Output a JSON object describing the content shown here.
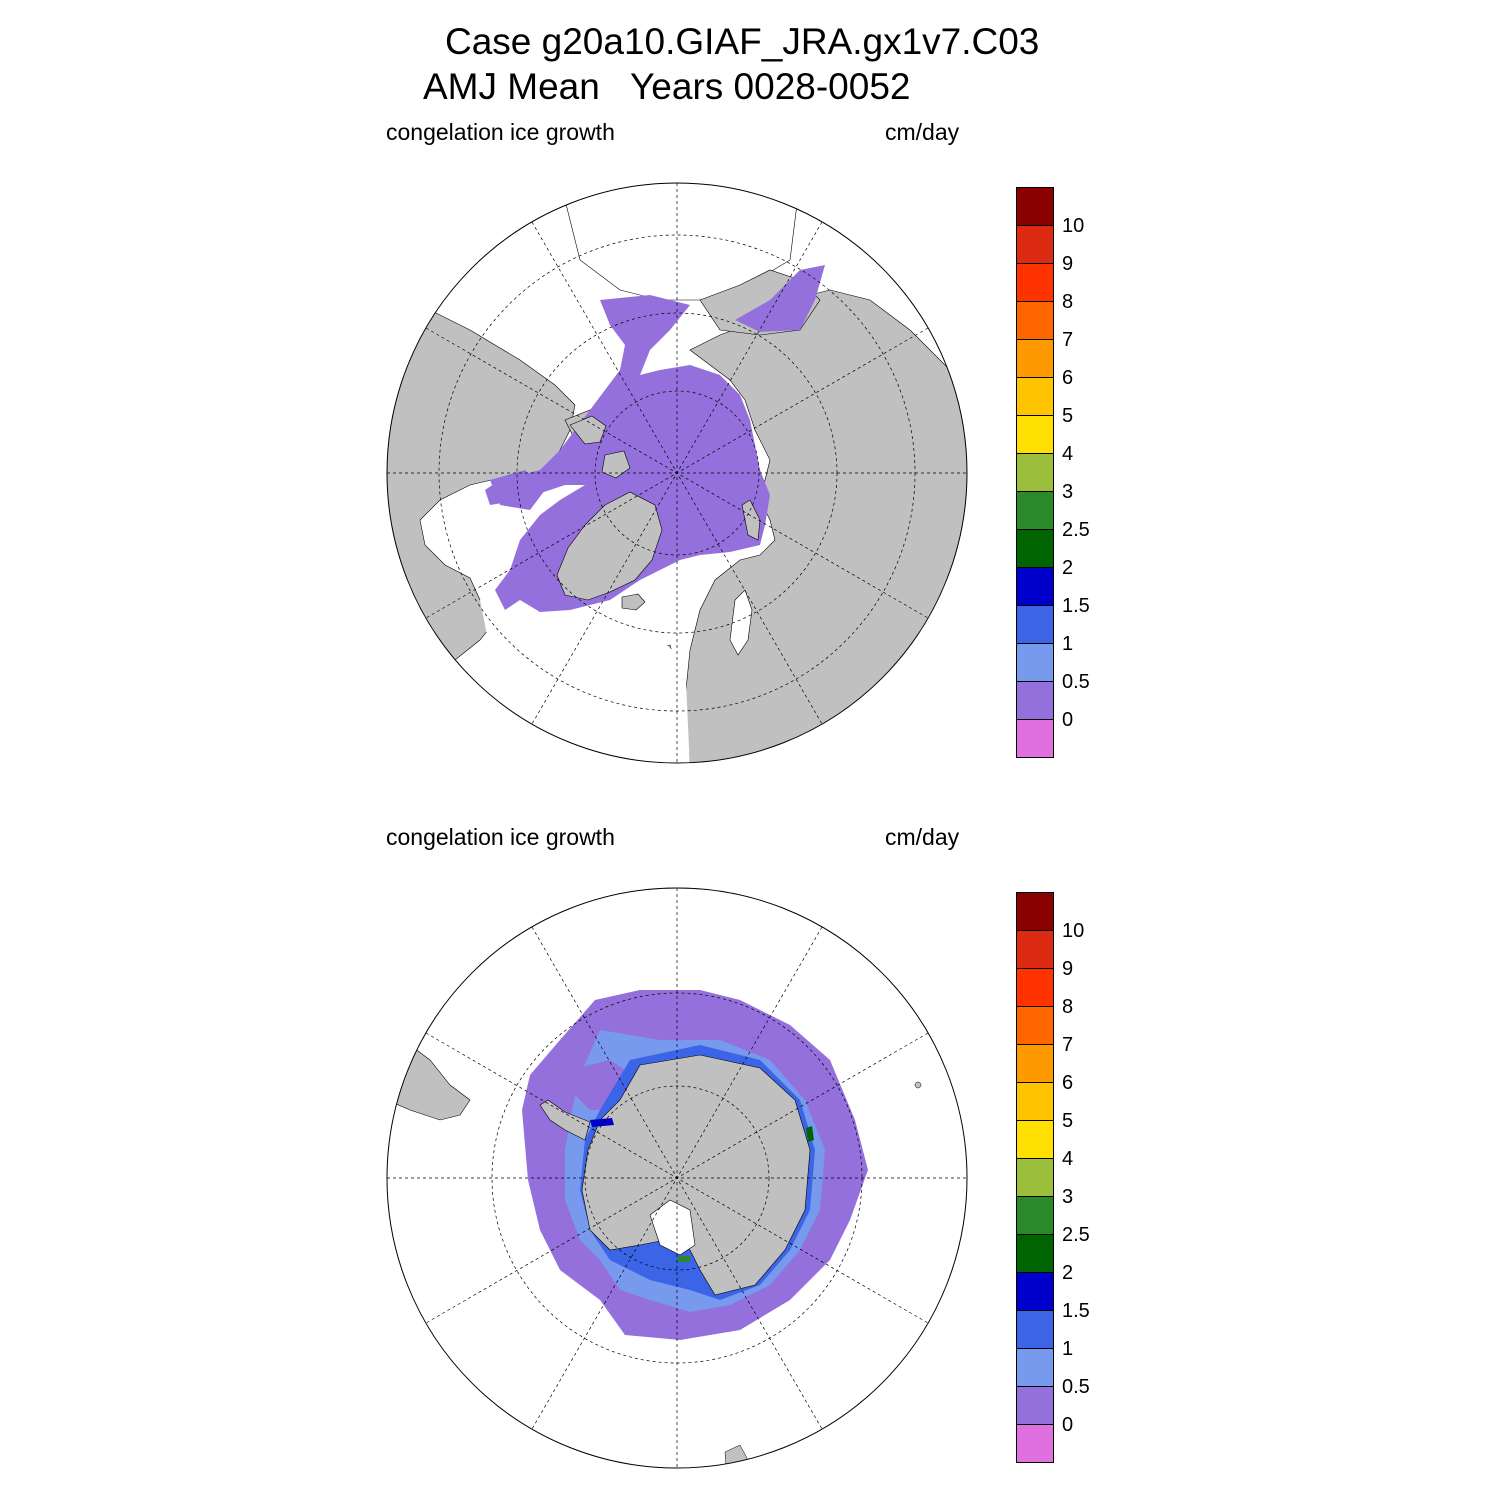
{
  "figure": {
    "title_line1": "Case g20a10.GIAF_JRA.gx1v7.C03",
    "title_line2": "AMJ Mean   Years 0028-0052"
  },
  "colors": {
    "land": "#c0c0c0",
    "ocean": "#ffffff",
    "grid": "#000000",
    "palette": [
      "#8b0000",
      "#dd2a12",
      "#ff3300",
      "#ff6600",
      "#ff9900",
      "#ffc400",
      "#ffe000",
      "#9bbf3a",
      "#2a8a2a",
      "#006400",
      "#0000cc",
      "#3c64e6",
      "#7799ee",
      "#9370db",
      "#e070e0"
    ]
  },
  "panels": [
    {
      "id": "north",
      "left_label": "congelation ice growth",
      "right_label": "cm/day",
      "hemisphere": "Northern Hemisphere",
      "dominant_class": "0 - 0.5"
    },
    {
      "id": "south",
      "left_label": "congelation ice growth",
      "right_label": "cm/day",
      "hemisphere": "Southern Hemisphere",
      "dominant_class": "0 - 1.5"
    }
  ],
  "colorbar": {
    "ticks": [
      "10",
      "9",
      "8",
      "7",
      "6",
      "5",
      "4",
      "3",
      "2.5",
      "2",
      "1.5",
      "1",
      "0.5",
      "0"
    ]
  }
}
